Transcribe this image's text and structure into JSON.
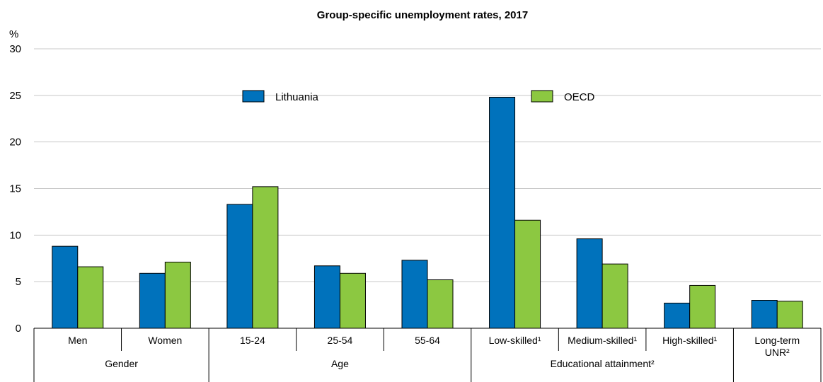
{
  "chart_data": {
    "type": "bar",
    "title": "Group-specific unemployment rates, 2017",
    "ylabel": "%",
    "ylim": [
      0,
      30
    ],
    "yticks": [
      0,
      5,
      10,
      15,
      20,
      25,
      30
    ],
    "grid": true,
    "legend_position": "top-center",
    "categories": [
      "Men",
      "Women",
      "15-24",
      "25-54",
      "55-64",
      "Low-skilled¹",
      "Medium-skilled¹",
      "High-skilled¹",
      ""
    ],
    "groups": [
      {
        "label": "Gender",
        "categories": [
          0,
          1
        ]
      },
      {
        "label": "Age",
        "categories": [
          2,
          3,
          4
        ]
      },
      {
        "label": "Educational attainment²",
        "categories": [
          5,
          6,
          7
        ]
      },
      {
        "label": "Long-term UNR²",
        "lines": [
          "Long-term",
          "UNR²"
        ],
        "categories": [
          8
        ]
      }
    ],
    "series": [
      {
        "name": "Lithuania",
        "color": "#0072bc",
        "values": [
          8.8,
          5.9,
          13.3,
          6.7,
          7.3,
          24.8,
          9.6,
          2.7,
          3.0
        ]
      },
      {
        "name": "OECD",
        "color": "#8cc841",
        "values": [
          6.6,
          7.1,
          15.2,
          5.9,
          5.2,
          11.6,
          6.9,
          4.6,
          2.9
        ]
      }
    ]
  }
}
